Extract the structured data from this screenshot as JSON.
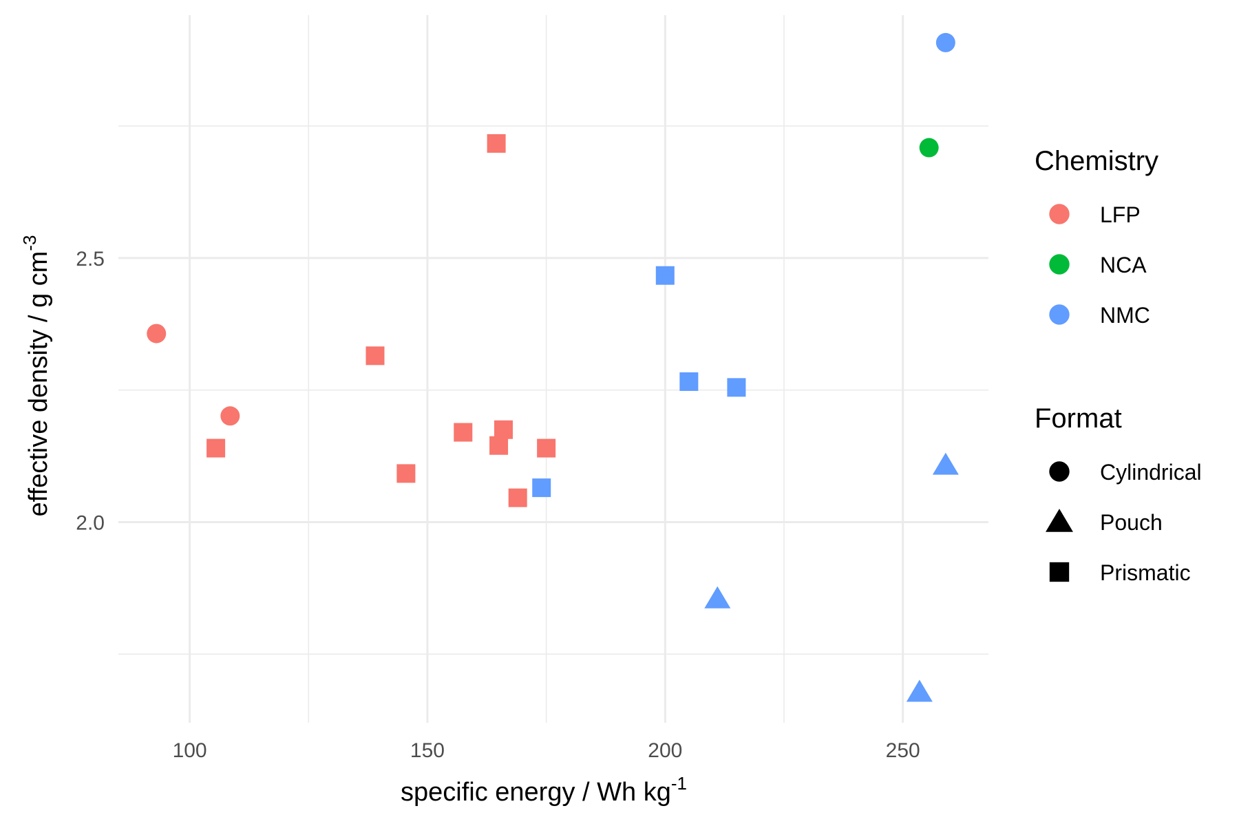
{
  "chart_data": {
    "type": "scatter",
    "title": "",
    "xlabel": "specific energy / Wh kg",
    "xlabel_sup": "-1",
    "ylabel": "effective density / g cm",
    "ylabel_sup": "-3",
    "xlim": [
      85,
      268
    ],
    "ylim": [
      1.62,
      2.96
    ],
    "xticks": [
      100,
      150,
      200,
      250
    ],
    "xtick_labels": [
      "100",
      "150",
      "200",
      "250"
    ],
    "yticks": [
      2.0,
      2.5
    ],
    "ytick_labels": [
      "2.0",
      "2.5"
    ],
    "x_minor_grid": [
      125,
      175,
      225
    ],
    "y_minor_grid": [
      1.75,
      2.25,
      2.75
    ],
    "grid": true,
    "legend_position": "right",
    "colors": {
      "LFP": "#F8766D",
      "NCA": "#00BA38",
      "NMC": "#619CFF"
    },
    "legends": [
      {
        "title": "Chemistry",
        "kind": "color",
        "entries": [
          {
            "label": "LFP",
            "color": "#F8766D",
            "shape": "circle"
          },
          {
            "label": "NCA",
            "color": "#00BA38",
            "shape": "circle"
          },
          {
            "label": "NMC",
            "color": "#619CFF",
            "shape": "circle"
          }
        ]
      },
      {
        "title": "Format",
        "kind": "shape",
        "entries": [
          {
            "label": "Cylindrical",
            "color": "#000000",
            "shape": "circle"
          },
          {
            "label": "Pouch",
            "color": "#000000",
            "shape": "triangle"
          },
          {
            "label": "Prismatic",
            "color": "#000000",
            "shape": "square"
          }
        ]
      }
    ],
    "points": [
      {
        "x": 93,
        "y": 2.357,
        "chemistry": "LFP",
        "format": "Cylindrical"
      },
      {
        "x": 108.5,
        "y": 2.201,
        "chemistry": "LFP",
        "format": "Cylindrical"
      },
      {
        "x": 105.5,
        "y": 2.14,
        "chemistry": "LFP",
        "format": "Prismatic"
      },
      {
        "x": 139,
        "y": 2.315,
        "chemistry": "LFP",
        "format": "Prismatic"
      },
      {
        "x": 145.5,
        "y": 2.092,
        "chemistry": "LFP",
        "format": "Prismatic"
      },
      {
        "x": 157.5,
        "y": 2.17,
        "chemistry": "LFP",
        "format": "Prismatic"
      },
      {
        "x": 164.5,
        "y": 2.717,
        "chemistry": "LFP",
        "format": "Prismatic"
      },
      {
        "x": 165,
        "y": 2.145,
        "chemistry": "LFP",
        "format": "Prismatic"
      },
      {
        "x": 166,
        "y": 2.175,
        "chemistry": "LFP",
        "format": "Prismatic"
      },
      {
        "x": 169,
        "y": 2.046,
        "chemistry": "LFP",
        "format": "Prismatic"
      },
      {
        "x": 175,
        "y": 2.14,
        "chemistry": "LFP",
        "format": "Prismatic"
      },
      {
        "x": 255.5,
        "y": 2.709,
        "chemistry": "NCA",
        "format": "Cylindrical"
      },
      {
        "x": 259,
        "y": 2.908,
        "chemistry": "NMC",
        "format": "Cylindrical"
      },
      {
        "x": 174,
        "y": 2.065,
        "chemistry": "NMC",
        "format": "Prismatic"
      },
      {
        "x": 200,
        "y": 2.467,
        "chemistry": "NMC",
        "format": "Prismatic"
      },
      {
        "x": 205,
        "y": 2.266,
        "chemistry": "NMC",
        "format": "Prismatic"
      },
      {
        "x": 215,
        "y": 2.255,
        "chemistry": "NMC",
        "format": "Prismatic"
      },
      {
        "x": 259,
        "y": 2.108,
        "chemistry": "NMC",
        "format": "Pouch"
      },
      {
        "x": 211,
        "y": 1.855,
        "chemistry": "NMC",
        "format": "Pouch"
      },
      {
        "x": 253.5,
        "y": 1.678,
        "chemistry": "NMC",
        "format": "Pouch"
      }
    ]
  }
}
